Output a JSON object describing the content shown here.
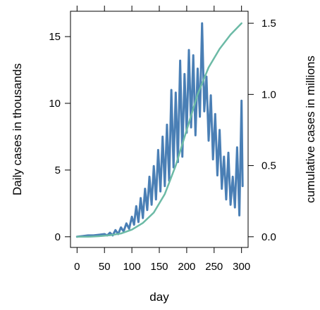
{
  "chart_data": {
    "type": "line",
    "xlabel": "day",
    "ylabel_left": "Daily cases in thousands",
    "ylabel_right": "cumulative cases in millions",
    "xlim": [
      -12,
      312
    ],
    "x_ticks": [
      0,
      50,
      100,
      150,
      200,
      250,
      300
    ],
    "y_left_lim": [
      -0.8,
      16.9
    ],
    "y_left_ticks": [
      0,
      5,
      10,
      15
    ],
    "y_right_ticks": [
      0.0,
      0.5,
      1.0,
      1.5
    ],
    "y_right_tick_labels": [
      "0.0",
      "0.5",
      "1.0",
      "1.5"
    ],
    "y_right_per_left": 0.09375,
    "grid": false,
    "legend": "none",
    "colors": {
      "daily": "#4a7fb5",
      "cumulative": "#6cbaa6"
    },
    "series": [
      {
        "axis": "left",
        "x": [
          0,
          10,
          20,
          30,
          40,
          50,
          55,
          60,
          65,
          70,
          75,
          80,
          85,
          90,
          95,
          100,
          104,
          108,
          112,
          116,
          120,
          124,
          128,
          132,
          136,
          140,
          144,
          148,
          152,
          156,
          160,
          164,
          168,
          172,
          176,
          180,
          184,
          188,
          192,
          196,
          200,
          204,
          208,
          212,
          216,
          220,
          224,
          228,
          232,
          236,
          240,
          244,
          248,
          252,
          256,
          260,
          264,
          268,
          272,
          276,
          280,
          284,
          288,
          292,
          296,
          300,
          302
        ],
        "values": [
          0.0,
          0.05,
          0.1,
          0.1,
          0.15,
          0.2,
          0.1,
          0.3,
          0.1,
          0.5,
          0.2,
          0.7,
          0.4,
          1.0,
          0.6,
          1.5,
          0.9,
          2.3,
          1.1,
          2.9,
          1.4,
          3.6,
          2.0,
          4.5,
          2.4,
          5.3,
          2.8,
          6.5,
          3.4,
          7.5,
          3.8,
          8.4,
          4.2,
          11.0,
          5.2,
          10.8,
          5.6,
          13.2,
          6.0,
          12.2,
          7.8,
          14.0,
          8.2,
          13.6,
          7.6,
          12.6,
          9.0,
          16.0,
          9.4,
          12.0,
          7.2,
          10.6,
          5.8,
          9.2,
          4.6,
          8.0,
          3.6,
          6.0,
          2.8,
          6.3,
          2.4,
          4.5,
          2.2,
          6.7,
          1.6,
          10.2,
          3.8
        ]
      },
      {
        "axis": "right",
        "x": [
          0,
          20,
          40,
          60,
          80,
          100,
          120,
          140,
          160,
          180,
          200,
          220,
          240,
          260,
          280,
          300
        ],
        "values": [
          0.0,
          0.0,
          0.004,
          0.011,
          0.023,
          0.05,
          0.097,
          0.17,
          0.3,
          0.5,
          0.75,
          1.0,
          1.19,
          1.32,
          1.42,
          1.5
        ]
      }
    ]
  }
}
